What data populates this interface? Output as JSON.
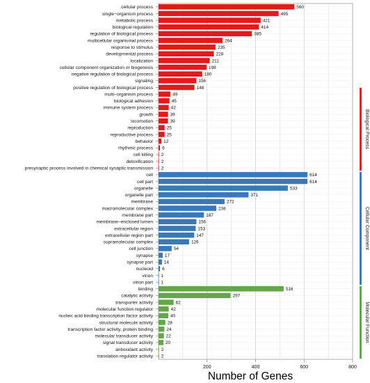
{
  "chart_data": {
    "type": "bar",
    "orientation": "horizontal",
    "xlabel": "Number of Genes",
    "ylabel": "",
    "xlim": [
      0,
      800
    ],
    "x_ticks": [
      "200",
      "400",
      "600",
      "800"
    ],
    "grid": true,
    "categories": [
      "cellular process",
      "single−organism process",
      "metabolic process",
      "biological regulation",
      "regulation of biological process",
      "multicellular organismal process",
      "response to stimulus",
      "developmental process",
      "localization",
      "cellular component organization or biogenesis",
      "negative regulation of biological process",
      "signaling",
      "positive regulation of biological process",
      "multi−organism process",
      "biological adhesion",
      "immune system process",
      "growth",
      "locomotion",
      "reproduction",
      "reproductive process",
      "behavior",
      "rhythmic process",
      "cell killing",
      "detoxification",
      "presynaptic process involved in chemical synaptic transmission",
      "cell",
      "cell part",
      "organelle",
      "organelle part",
      "membrane",
      "macromolecular complex",
      "membrane part",
      "membrane−enclosed lumen",
      "extracellular region",
      "extracellular region part",
      "supramolecular complex",
      "cell junction",
      "synapse",
      "synapse part",
      "nucleoid",
      "virion",
      "virion part",
      "binding",
      "catalytic activity",
      "transporter activity",
      "molecular function regulator",
      "nucleic acid binding transcription factor activity",
      "structural molecule activity",
      "transcription factor activity, protein binding",
      "molecular transducer activity",
      "signal transducer activity",
      "antioxidant activity",
      "translation regulator activity"
    ],
    "values": [
      560,
      495,
      421,
      414,
      385,
      264,
      235,
      228,
      211,
      198,
      180,
      156,
      148,
      49,
      45,
      42,
      39,
      39,
      25,
      25,
      12,
      6,
      2,
      2,
      2,
      614,
      614,
      533,
      371,
      272,
      238,
      187,
      156,
      153,
      147,
      126,
      54,
      17,
      14,
      6,
      1,
      1,
      516,
      297,
      62,
      42,
      40,
      28,
      24,
      22,
      20,
      2,
      2
    ],
    "groups": [
      {
        "name": "Biological Process",
        "count": 25,
        "color": "#e31a1c"
      },
      {
        "name": "Cellular Component",
        "count": 17,
        "color": "#3a78b8"
      },
      {
        "name": "Molecular Function",
        "count": 11,
        "color": "#62a84a"
      }
    ]
  }
}
